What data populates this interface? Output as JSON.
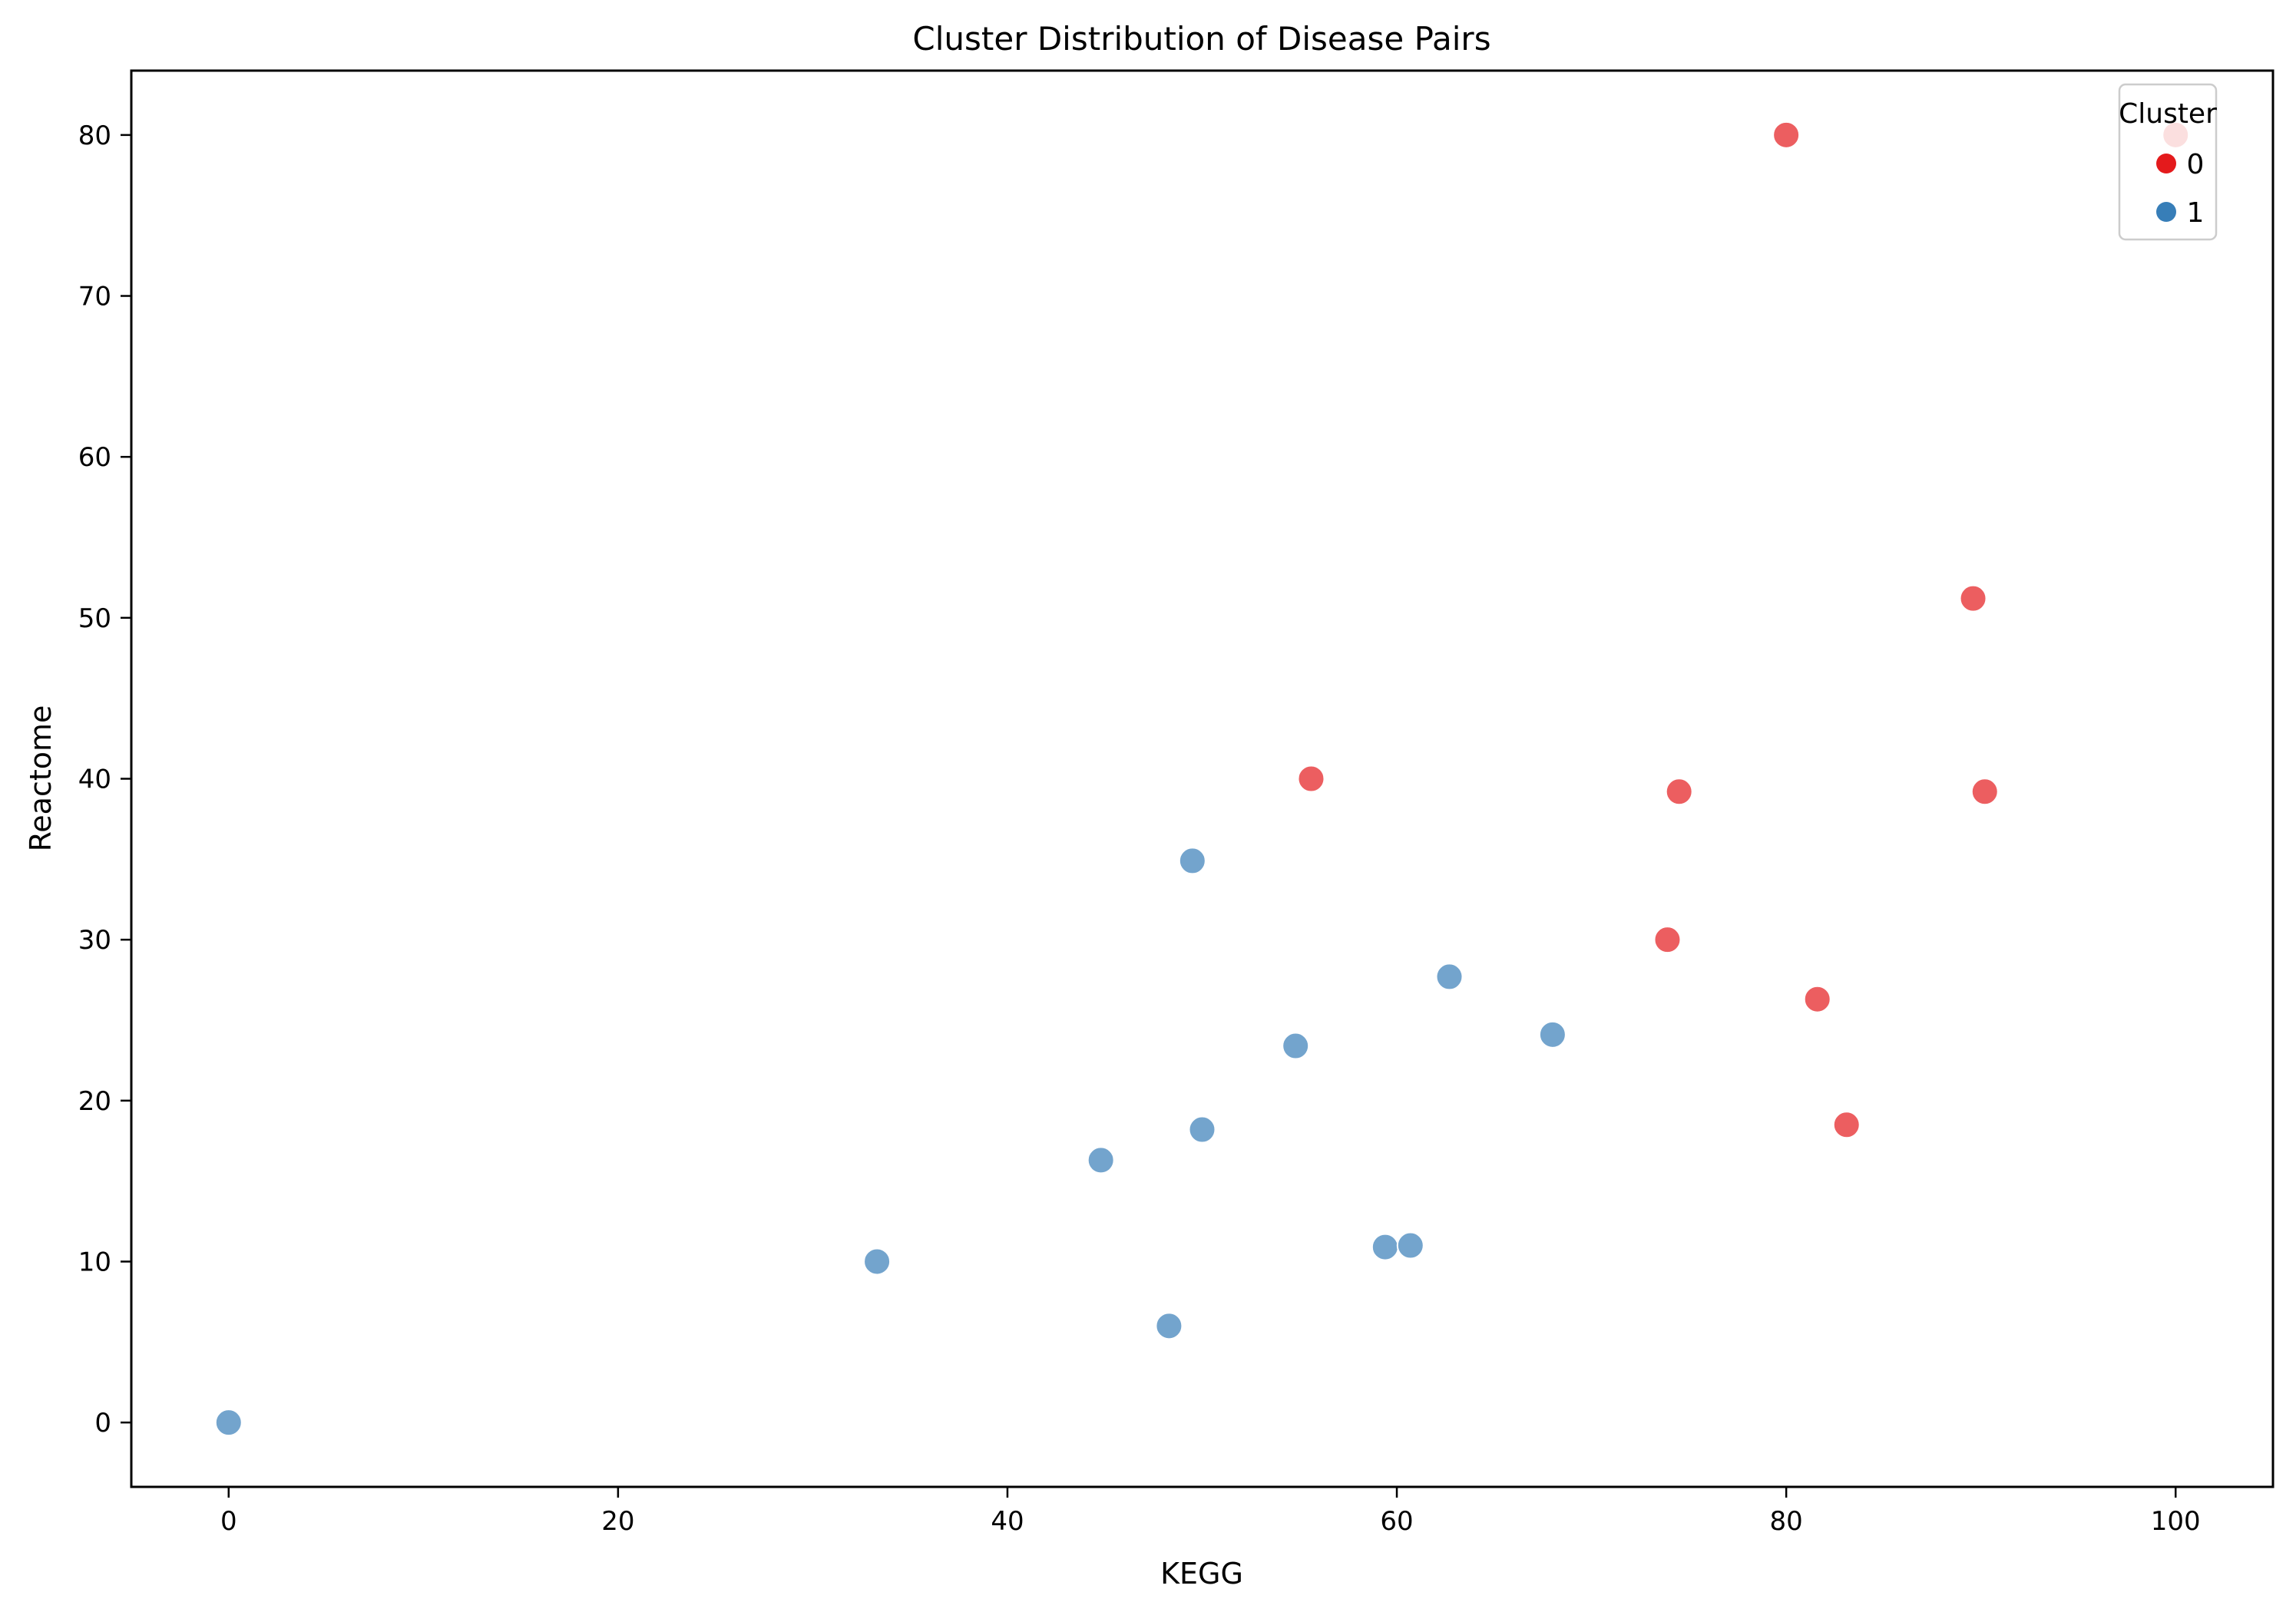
{
  "chart_data": {
    "type": "scatter",
    "title": "Cluster Distribution of Disease Pairs",
    "xlabel": "KEGG",
    "ylabel": "Reactome",
    "xlim": [
      -5,
      105
    ],
    "ylim": [
      -4,
      84
    ],
    "xticks": [
      0,
      20,
      40,
      60,
      80,
      100
    ],
    "yticks": [
      0,
      10,
      20,
      30,
      40,
      50,
      60,
      70,
      80
    ],
    "grid": false,
    "legend": {
      "title": "Cluster",
      "placement": "top-right",
      "entries": [
        {
          "label": "0",
          "color": "#e41a1c"
        },
        {
          "label": "1",
          "color": "#377eb8"
        }
      ]
    },
    "point_opacity": 0.7,
    "series": [
      {
        "name": "0",
        "color": "#e41a1c",
        "points": [
          {
            "x": 80.0,
            "y": 80.0
          },
          {
            "x": 100.0,
            "y": 80.0
          },
          {
            "x": 89.6,
            "y": 51.2
          },
          {
            "x": 55.6,
            "y": 40.0
          },
          {
            "x": 74.5,
            "y": 39.2
          },
          {
            "x": 90.2,
            "y": 39.2
          },
          {
            "x": 73.9,
            "y": 30.0
          },
          {
            "x": 81.6,
            "y": 26.3
          },
          {
            "x": 83.1,
            "y": 18.5
          }
        ]
      },
      {
        "name": "1",
        "color": "#377eb8",
        "points": [
          {
            "x": 49.5,
            "y": 34.9
          },
          {
            "x": 62.7,
            "y": 27.7
          },
          {
            "x": 54.8,
            "y": 23.4
          },
          {
            "x": 68.0,
            "y": 24.1
          },
          {
            "x": 50.0,
            "y": 18.2
          },
          {
            "x": 44.8,
            "y": 16.3
          },
          {
            "x": 59.4,
            "y": 10.9
          },
          {
            "x": 60.7,
            "y": 11.0
          },
          {
            "x": 33.3,
            "y": 10.0
          },
          {
            "x": 48.3,
            "y": 6.0
          },
          {
            "x": 0.0,
            "y": 0.0
          }
        ]
      }
    ]
  }
}
